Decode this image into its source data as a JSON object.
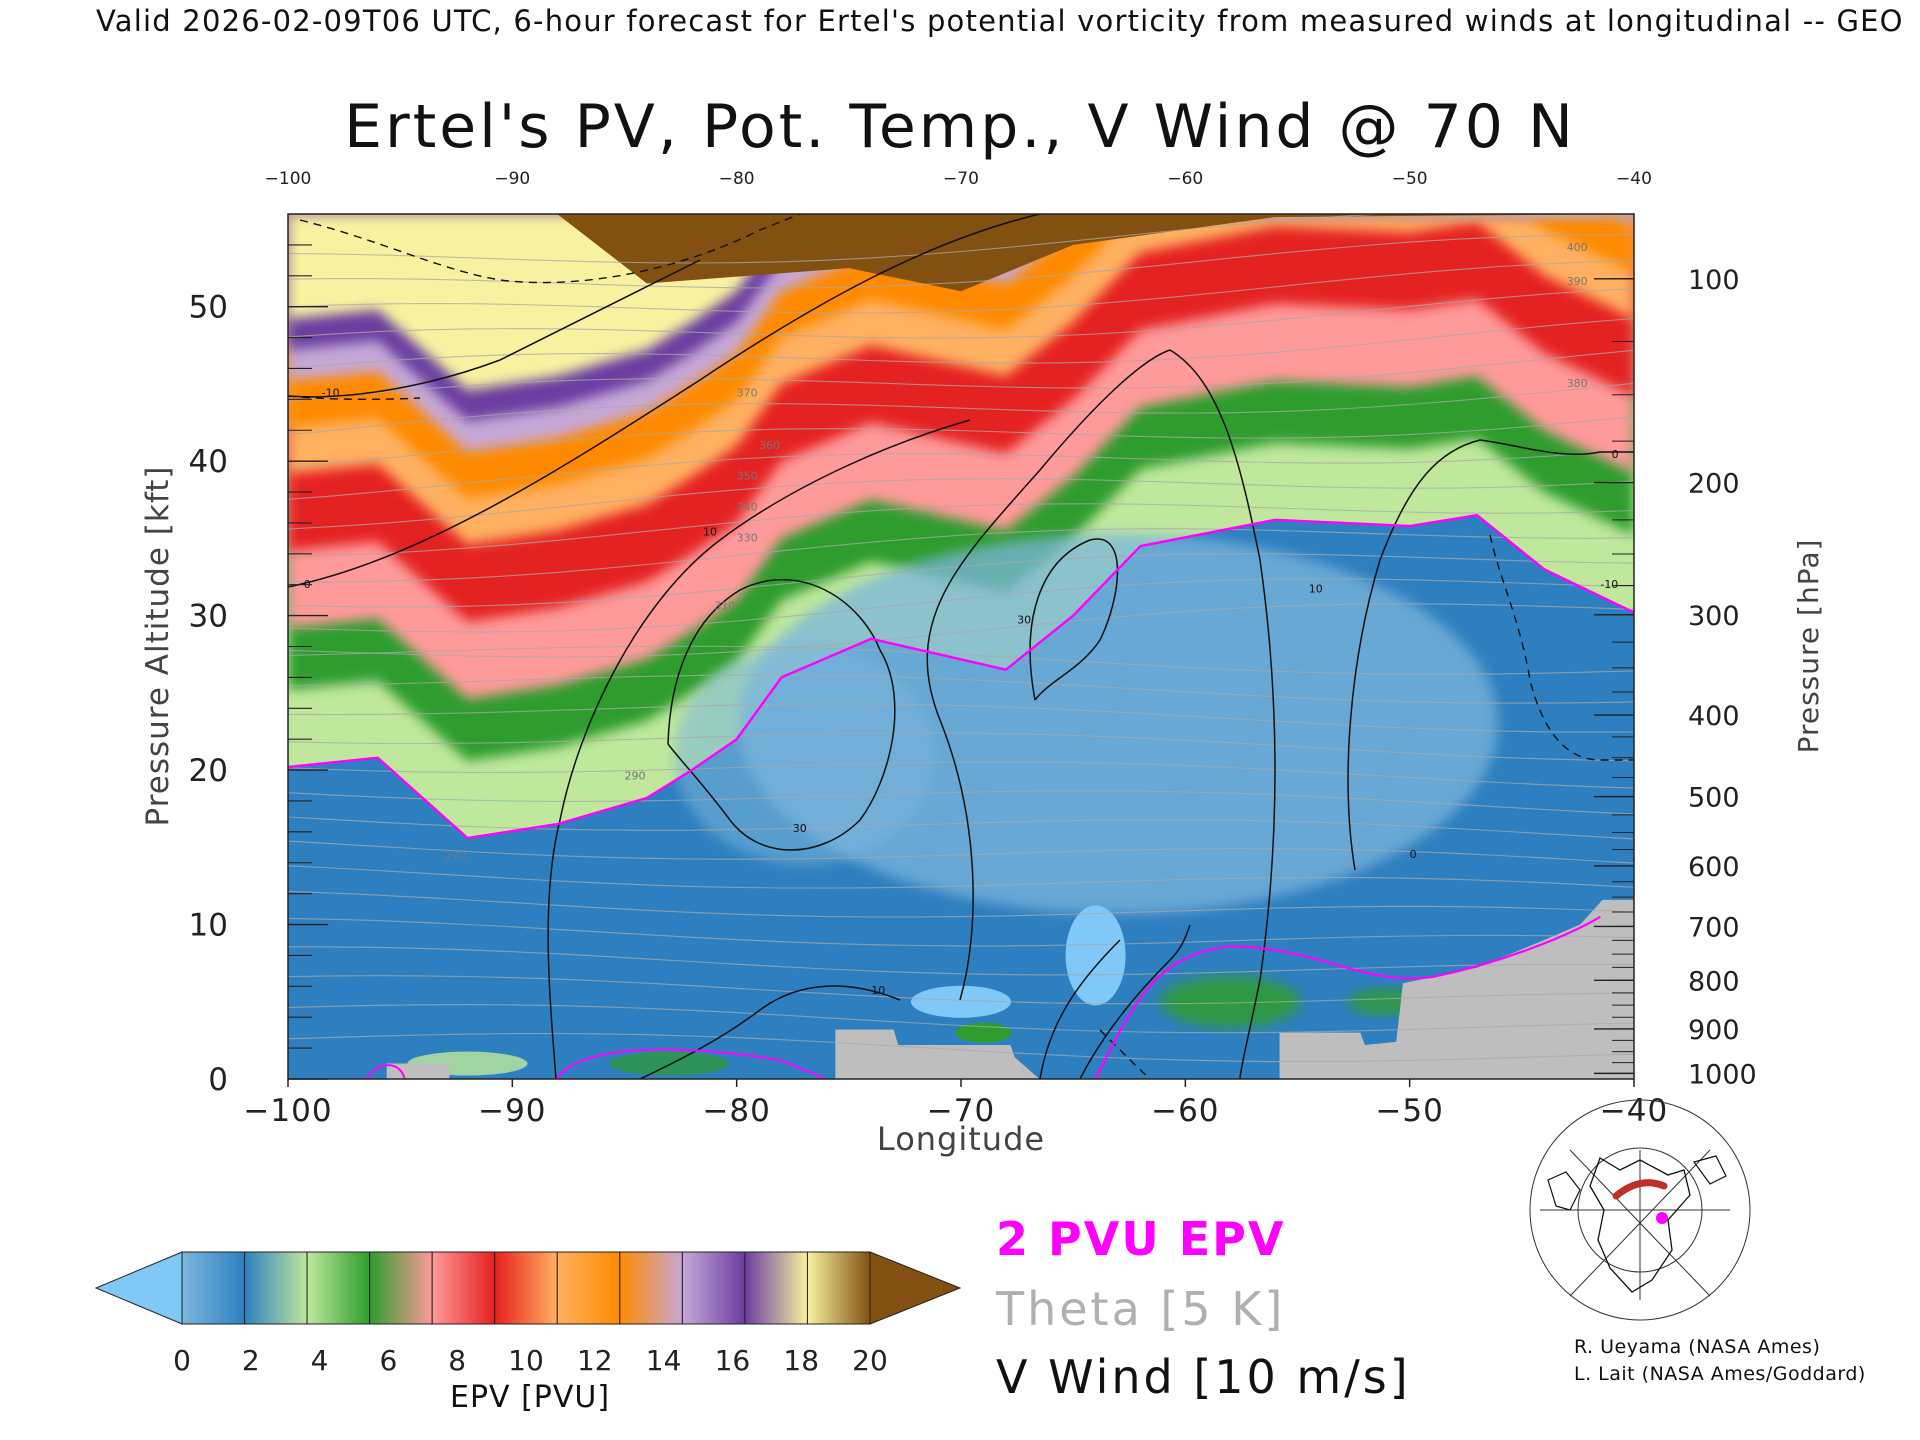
{
  "header": {
    "text": "Valid 2026-02-09T06 UTC, 6-hour forecast for Ertel's potential vorticity from measured winds at longitudinal -- GEO"
  },
  "chart_data": {
    "type": "heatmap",
    "title": "Ertel's PV, Pot. Temp., V Wind @ 70 N",
    "xlabel": "Longitude",
    "ylabel": "Pressure Altitude [kft]",
    "y2label": "Pressure [hPa]",
    "xlim": [
      -100,
      -40
    ],
    "ylim": [
      0,
      56
    ],
    "x_ticks": [
      -100,
      -90,
      -80,
      -70,
      -60,
      -50,
      -40
    ],
    "x_tick_labels": [
      "−100",
      "−90",
      "−80",
      "−70",
      "−60",
      "−50",
      "−40"
    ],
    "top_tick_labels": [
      "−100",
      "−90",
      "−80",
      "−70",
      "−60",
      "−50",
      "−40"
    ],
    "y_ticks": [
      0,
      10,
      20,
      30,
      40,
      50
    ],
    "pressure_ticks": [
      1000,
      900,
      800,
      700,
      600,
      500,
      400,
      300,
      200,
      100
    ],
    "theta_labels": [
      "270",
      "290",
      "310",
      "330",
      "340",
      "350",
      "360",
      "370",
      "380",
      "390",
      "400"
    ],
    "vwind_labels": [
      "-10",
      "0",
      "10",
      "30"
    ],
    "fields": [
      {
        "name": "2 PVU EPV",
        "color": "#ff00ff"
      },
      {
        "name": "Theta [5 K]",
        "color": "#b0b0b0"
      },
      {
        "name": "V Wind [10 m/s]",
        "color": "#111111"
      }
    ],
    "tropopause_2pvu_kft": [
      {
        "lon": -100,
        "alt": 20.2
      },
      {
        "lon": -96,
        "alt": 20.8
      },
      {
        "lon": -94,
        "alt": 18.2
      },
      {
        "lon": -92,
        "alt": 15.6
      },
      {
        "lon": -88,
        "alt": 16.5
      },
      {
        "lon": -84,
        "alt": 18.2
      },
      {
        "lon": -82,
        "alt": 20.0
      },
      {
        "lon": -80,
        "alt": 22.0
      },
      {
        "lon": -78,
        "alt": 26.0
      },
      {
        "lon": -74,
        "alt": 28.5
      },
      {
        "lon": -68,
        "alt": 26.5
      },
      {
        "lon": -65,
        "alt": 30.0
      },
      {
        "lon": -62,
        "alt": 34.5
      },
      {
        "lon": -56,
        "alt": 36.2
      },
      {
        "lon": -50,
        "alt": 35.8
      },
      {
        "lon": -47,
        "alt": 36.5
      },
      {
        "lon": -44,
        "alt": 33.0
      },
      {
        "lon": -40,
        "alt": 30.2
      }
    ],
    "colorbar": {
      "label": "EPV [PVU]",
      "ticks": [
        "0",
        "2",
        "4",
        "6",
        "8",
        "10",
        "12",
        "14",
        "16",
        "18",
        "20"
      ],
      "colors": [
        "#7ab6dc",
        "#2e7fbf",
        "#bfe89c",
        "#2e9d2e",
        "#ff9a9a",
        "#e52020",
        "#ffb060",
        "#ff8a00",
        "#c6a8d6",
        "#6b3ea0",
        "#f8f2a0"
      ],
      "under_color": "#80c8f8",
      "over_color": "#825112"
    }
  },
  "colors": {
    "pv_contour": "#ff00ff",
    "theta": "#a8a8a8",
    "terrain": "#bebebe",
    "strat_top": "#825112"
  },
  "legend": {
    "pv": "2 PVU EPV",
    "theta": "Theta [5 K]",
    "vwind": "V Wind [10 m/s]"
  },
  "credits": {
    "line1": "R. Ueyama (NASA Ames)",
    "line2": "L. Lait (NASA Ames/Goddard)"
  },
  "inset_map": {
    "icon": "polar-locator-map-icon"
  }
}
